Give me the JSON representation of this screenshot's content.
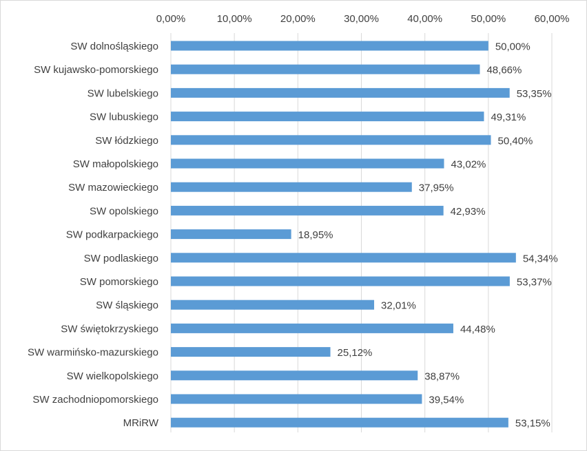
{
  "chart_data": {
    "type": "bar",
    "orientation": "horizontal",
    "xlim": [
      0,
      60
    ],
    "x_ticks": [
      0,
      10,
      20,
      30,
      40,
      50,
      60
    ],
    "x_tick_labels": [
      "0,00%",
      "10,00%",
      "20,00%",
      "30,00%",
      "40,00%",
      "50,00%",
      "60,00%"
    ],
    "x_axis_position": "top",
    "grid": true,
    "bar_color": "#5b9bd5",
    "categories": [
      "SW dolnośląskiego",
      "SW kujawsko-pomorskiego",
      "SW lubelskiego",
      "SW lubuskiego",
      "SW łódzkiego",
      "SW małopolskiego",
      "SW mazowieckiego",
      "SW opolskiego",
      "SW podkarpackiego",
      "SW podlaskiego",
      "SW pomorskiego",
      "SW śląskiego",
      "SW świętokrzyskiego",
      "SW warmińsko-mazurskiego",
      "SW wielkopolskiego",
      "SW zachodniopomorskiego",
      "MRiRW"
    ],
    "values": [
      50.0,
      48.66,
      53.35,
      49.31,
      50.4,
      43.02,
      37.95,
      42.93,
      18.95,
      54.34,
      53.37,
      32.01,
      44.48,
      25.12,
      38.87,
      39.54,
      53.15
    ],
    "value_labels": [
      "50,00%",
      "48,66%",
      "53,35%",
      "49,31%",
      "50,40%",
      "43,02%",
      "37,95%",
      "42,93%",
      "18,95%",
      "54,34%",
      "53,37%",
      "32,01%",
      "44,48%",
      "25,12%",
      "38,87%",
      "39,54%",
      "53,15%"
    ]
  }
}
